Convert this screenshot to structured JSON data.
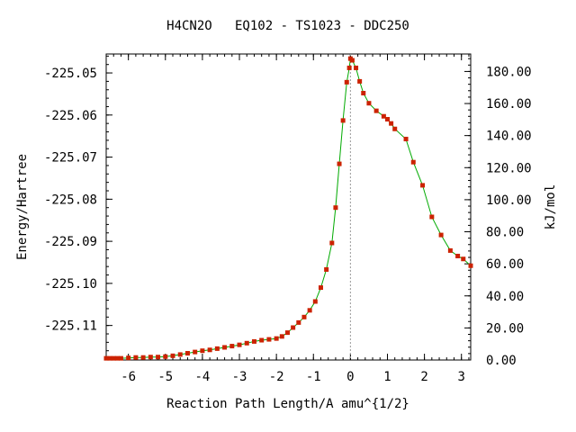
{
  "chart_data": {
    "type": "line",
    "title": "H4CN2O   EQ102 - TS1023 - DDC250",
    "xlabel": "Reaction Path Length/A amu^{1/2}",
    "ylabel_left": "Energy/Hartree",
    "ylabel_right": "kJ/mol",
    "xlim": [
      -6.6,
      3.25
    ],
    "ylim_left": [
      -225.1182,
      -225.0455
    ],
    "ylim_right": [
      0.0,
      190.9
    ],
    "x_ticks": [
      -6,
      -5,
      -4,
      -3,
      -2,
      -1,
      0,
      1,
      2,
      3
    ],
    "x_tick_labels": [
      "-6",
      "-5",
      "-4",
      "-3",
      "-2",
      "-1",
      "0",
      "1",
      "2",
      "3"
    ],
    "y_left_ticks": [
      -225.05,
      -225.06,
      -225.07,
      -225.08,
      -225.09,
      -225.1,
      -225.11
    ],
    "y_left_tick_labels": [
      "-225.05",
      "-225.06",
      "-225.07",
      "-225.08",
      "-225.09",
      "-225.10",
      "-225.11"
    ],
    "y_right_ticks": [
      0,
      20,
      40,
      60,
      80,
      100,
      120,
      140,
      160,
      180
    ],
    "y_right_tick_labels": [
      "0.00",
      "20.00",
      "40.00",
      "60.00",
      "80.00",
      "100.00",
      "120.00",
      "140.00",
      "160.00",
      "180.00"
    ],
    "ts_marker_x": 0.0,
    "colors": {
      "line": "#00aa00",
      "marker": "#cc2200",
      "ts_line": "#999999"
    },
    "series": [
      {
        "x": [
          -6.6,
          -6.5,
          -6.4,
          -6.3,
          -6.2,
          -6.0,
          -5.8,
          -5.6,
          -5.4,
          -5.2,
          -5.0,
          -4.8,
          -4.6,
          -4.4,
          -4.2,
          -4.0,
          -3.8,
          -3.6,
          -3.4,
          -3.2,
          -3.0,
          -2.8,
          -2.6,
          -2.4,
          -2.2,
          -2.0,
          -1.85,
          -1.7,
          -1.55,
          -1.4,
          -1.25,
          -1.1,
          -0.95,
          -0.8,
          -0.65,
          -0.5,
          -0.4,
          -0.3,
          -0.2,
          -0.1,
          -0.03,
          0.0,
          0.05,
          0.15,
          0.25,
          0.35,
          0.5,
          0.7,
          0.9,
          1.0,
          1.1,
          1.2,
          1.5,
          1.7,
          1.95,
          2.2,
          2.45,
          2.7,
          2.9,
          3.05,
          3.25
        ],
        "y": [
          -225.1178,
          -225.1178,
          -225.1178,
          -225.1178,
          -225.1178,
          -225.1177,
          -225.1176,
          -225.1176,
          -225.1175,
          -225.1175,
          -225.1174,
          -225.1172,
          -225.1169,
          -225.1166,
          -225.1163,
          -225.116,
          -225.1158,
          -225.1155,
          -225.1152,
          -225.1149,
          -225.1146,
          -225.1142,
          -225.1138,
          -225.1135,
          -225.1133,
          -225.1131,
          -225.1126,
          -225.1117,
          -225.1105,
          -225.1093,
          -225.108,
          -225.1064,
          -225.1043,
          -225.101,
          -225.0967,
          -225.0904,
          -225.082,
          -225.0716,
          -225.0613,
          -225.0522,
          -225.0488,
          -225.0466,
          -225.047,
          -225.0488,
          -225.052,
          -225.0548,
          -225.0572,
          -225.059,
          -225.0603,
          -225.061,
          -225.062,
          -225.0633,
          -225.0657,
          -225.0712,
          -225.0767,
          -225.0842,
          -225.0885,
          -225.0922,
          -225.0935,
          -225.0942,
          -225.0958
        ]
      }
    ]
  }
}
